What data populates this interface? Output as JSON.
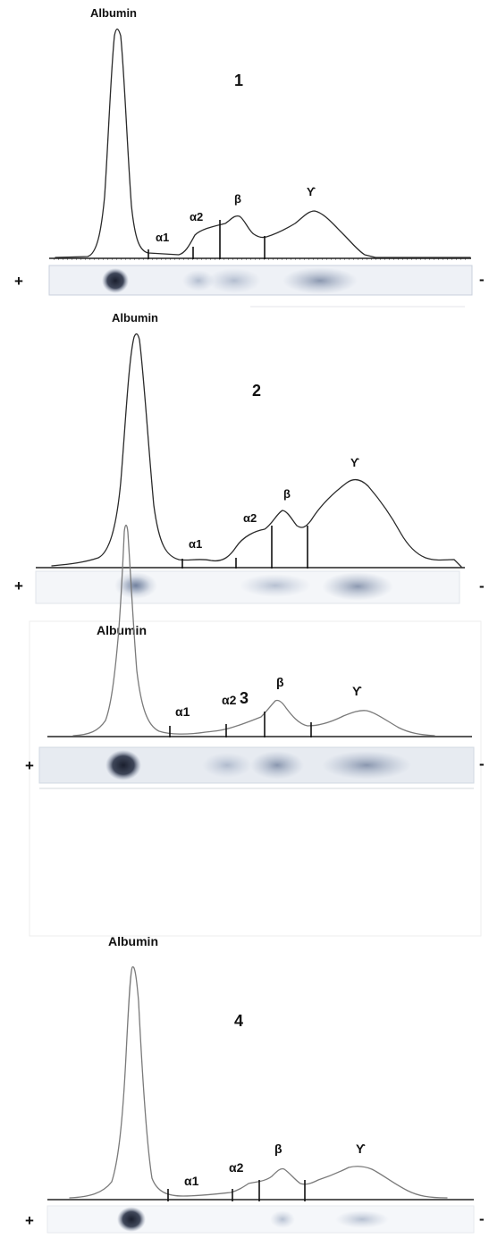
{
  "panels": [
    {
      "number": "1",
      "albumin_label": "Albumin",
      "fraction_labels": {
        "a1": "α1",
        "a2": "α2",
        "beta": "β",
        "gamma": "ϒ"
      },
      "anode": "+",
      "cathode": "-",
      "trace_color": "#2a2a2a",
      "band_color": "#8ea0bc"
    },
    {
      "number": "2",
      "albumin_label": "Albumin",
      "fraction_labels": {
        "a1": "α1",
        "a2": "α2",
        "beta": "β",
        "gamma": "ϒ"
      },
      "anode": "+",
      "cathode": "-",
      "trace_color": "#2a2a2a",
      "band_color": "#8ea0bc"
    },
    {
      "number": "3",
      "albumin_label": "Albumin",
      "fraction_labels": {
        "a1": "α1",
        "a2": "α2",
        "beta": "β",
        "gamma": "ϒ"
      },
      "anode": "+",
      "cathode": "-",
      "trace_color": "#7a7a7a",
      "band_color": "#8a99b4"
    },
    {
      "number": "4",
      "albumin_label": "Albumin",
      "fraction_labels": {
        "a1": "α1",
        "a2": "α2",
        "beta": "β",
        "gamma": "ϒ"
      },
      "anode": "+",
      "cathode": "-",
      "trace_color": "#7a7a7a",
      "band_color": "#8a99b4"
    }
  ]
}
